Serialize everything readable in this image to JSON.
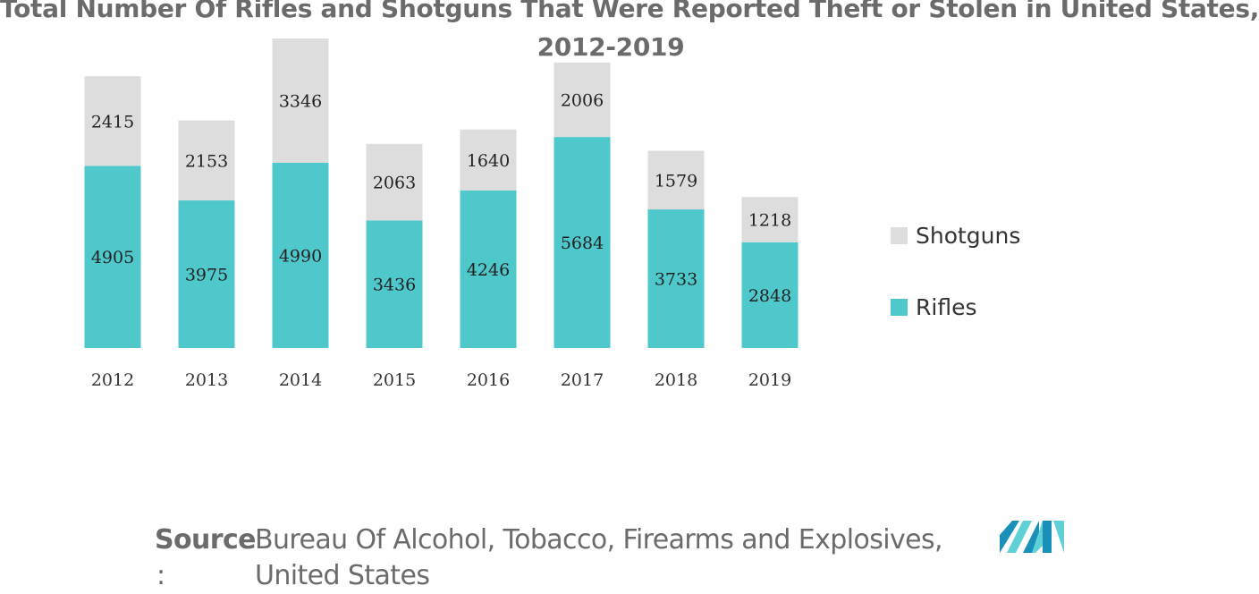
{
  "title": {
    "line1": "Total Number Of Rifles and Shotguns That Were Reported Theft or Stolen in United States,",
    "line2": "2012-2019"
  },
  "chart_data": {
    "type": "bar",
    "stacked": true,
    "title": "Total Number Of Rifles and Shotguns That Were Reported Theft or Stolen in United States, 2012-2019",
    "categories": [
      "2012",
      "2013",
      "2014",
      "2015",
      "2016",
      "2017",
      "2018",
      "2019"
    ],
    "series": [
      {
        "name": "Rifles",
        "values": [
          4905,
          3975,
          4990,
          3436,
          4246,
          5684,
          3733,
          2848
        ],
        "color": "#4fc8cc"
      },
      {
        "name": "Shotguns",
        "values": [
          2415,
          2153,
          3346,
          2063,
          1640,
          2006,
          1579,
          1218
        ],
        "color": "#dddddd"
      }
    ],
    "xlabel": "",
    "ylabel": "",
    "grid": false,
    "legend_position": "right"
  },
  "legend": [
    {
      "label": "Shotguns",
      "color": "#dddddd"
    },
    {
      "label": "Rifles",
      "color": "#4fc8cc"
    }
  ],
  "source": {
    "label": "Source",
    "colon": ":",
    "text_line1": "Bureau Of Alcohol, Tobacco, Firearms and Explosives,",
    "text_line2": "United States"
  },
  "logo": {
    "icon": "mordor-intelligence-logo",
    "colors": [
      "#1a8fb8",
      "#5fd1d6"
    ]
  }
}
